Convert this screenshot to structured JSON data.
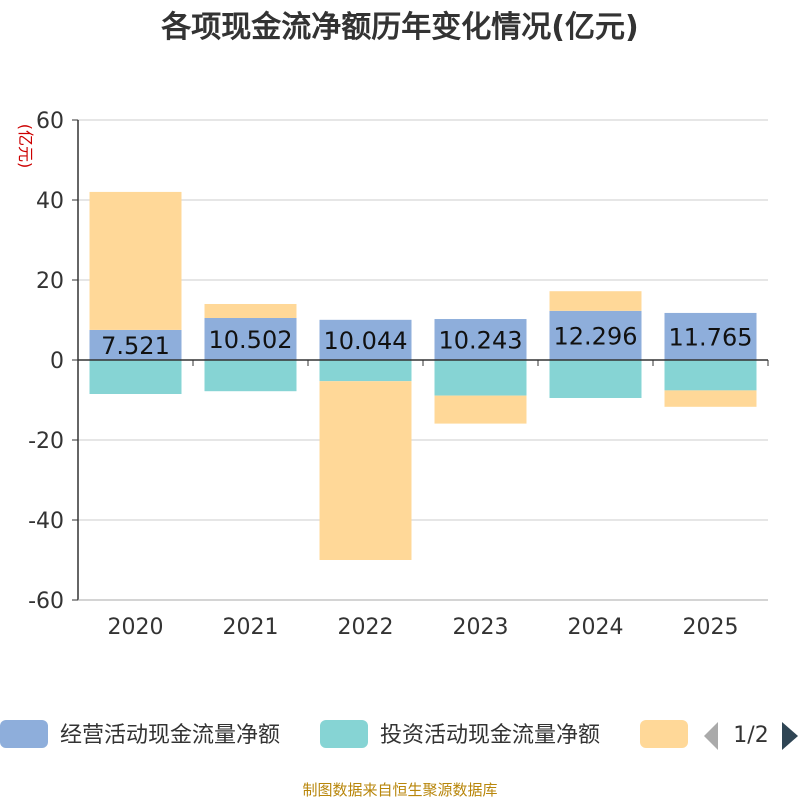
{
  "chart_data": {
    "type": "bar",
    "stacked": true,
    "title": "各项现金流净额历年变化情况(亿元)",
    "ylabel": "(亿元)",
    "ylim": [
      -60,
      60
    ],
    "yticks": [
      60,
      40,
      20,
      0,
      -20,
      -40,
      -60
    ],
    "categories": [
      "2020",
      "2021",
      "2022",
      "2023",
      "2024",
      "2025"
    ],
    "series": [
      {
        "name": "经营活动现金流量净额",
        "color": "#8eaedb",
        "values": [
          7.521,
          10.502,
          10.044,
          10.243,
          12.296,
          11.765
        ]
      },
      {
        "name": "投资活动现金流量净额",
        "color": "#86d4d4",
        "values": [
          -8.5,
          -7.8,
          -5.3,
          -8.9,
          -9.5,
          -7.6
        ]
      },
      {
        "name": "",
        "color": "#ffd898",
        "values": [
          34.5,
          3.5,
          -44.7,
          -7.0,
          4.9,
          -4.1
        ]
      }
    ],
    "data_labels": [
      "7.521",
      "10.502",
      "10.044",
      "10.243",
      "12.296",
      "11.765"
    ],
    "legend_position": "bottom",
    "legend_page": "1/2",
    "source": "制图数据来自恒生聚源数据库"
  }
}
